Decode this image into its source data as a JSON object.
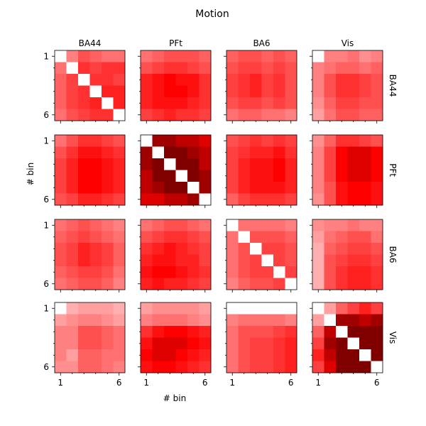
{
  "chart_data": {
    "type": "heatmap",
    "title": "Motion",
    "xlabel": "# bin",
    "ylabel": "# bin",
    "regions": [
      "BA44",
      "PFt",
      "BA6",
      "Vis"
    ],
    "bins": [
      1,
      2,
      3,
      4,
      5,
      6
    ],
    "tick_labels": [
      "1",
      "6"
    ],
    "colormap": "white-to-red-to-darkred",
    "color_range": [
      0,
      1
    ],
    "diagonal_of_diagonal_blocks": "blank",
    "matrices": [
      [
        [
          [
            null,
            0.4,
            0.55,
            0.5,
            0.45,
            0.45
          ],
          [
            0.45,
            null,
            0.65,
            0.6,
            0.65,
            0.65
          ],
          [
            0.5,
            0.6,
            null,
            0.65,
            0.65,
            0.6
          ],
          [
            0.5,
            0.6,
            0.65,
            null,
            0.7,
            0.7
          ],
          [
            0.5,
            0.6,
            0.65,
            0.7,
            null,
            0.7
          ],
          [
            0.45,
            0.55,
            0.6,
            0.65,
            0.65,
            null
          ]
        ],
        [
          [
            0.45,
            0.5,
            0.55,
            0.55,
            0.55,
            0.5
          ],
          [
            0.55,
            0.6,
            0.65,
            0.65,
            0.6,
            0.55
          ],
          [
            0.7,
            0.75,
            0.8,
            0.75,
            0.75,
            0.65
          ],
          [
            0.7,
            0.75,
            0.8,
            0.8,
            0.75,
            0.65
          ],
          [
            0.7,
            0.75,
            0.75,
            0.75,
            0.7,
            0.65
          ],
          [
            0.6,
            0.65,
            0.7,
            0.65,
            0.65,
            0.6
          ]
        ],
        [
          [
            0.5,
            0.55,
            0.55,
            0.5,
            0.55,
            0.5
          ],
          [
            0.55,
            0.6,
            0.6,
            0.55,
            0.6,
            0.55
          ],
          [
            0.6,
            0.65,
            0.7,
            0.6,
            0.65,
            0.55
          ],
          [
            0.6,
            0.65,
            0.7,
            0.6,
            0.65,
            0.55
          ],
          [
            0.55,
            0.6,
            0.6,
            0.55,
            0.6,
            0.55
          ],
          [
            0.45,
            0.5,
            0.5,
            0.45,
            0.45,
            0.4
          ]
        ],
        [
          [
            null,
            0.4,
            0.4,
            0.45,
            0.35,
            0.4
          ],
          [
            0.4,
            0.45,
            0.5,
            0.5,
            0.45,
            0.5
          ],
          [
            0.4,
            0.55,
            0.65,
            0.65,
            0.6,
            0.55
          ],
          [
            0.4,
            0.55,
            0.65,
            0.65,
            0.6,
            0.55
          ],
          [
            0.35,
            0.5,
            0.6,
            0.6,
            0.55,
            0.55
          ],
          [
            0.3,
            0.45,
            0.55,
            0.55,
            0.5,
            0.5
          ]
        ]
      ],
      [
        [
          [
            0.45,
            0.55,
            0.65,
            0.65,
            0.6,
            0.55
          ],
          [
            0.55,
            0.65,
            0.75,
            0.75,
            0.7,
            0.65
          ],
          [
            0.6,
            0.7,
            0.8,
            0.8,
            0.75,
            0.7
          ],
          [
            0.6,
            0.7,
            0.8,
            0.8,
            0.75,
            0.7
          ],
          [
            0.6,
            0.7,
            0.8,
            0.8,
            0.75,
            0.7
          ],
          [
            0.55,
            0.6,
            0.7,
            0.7,
            0.65,
            0.6
          ]
        ],
        [
          [
            null,
            0.95,
            0.95,
            0.9,
            0.9,
            0.85
          ],
          [
            0.95,
            null,
            1.0,
            1.0,
            0.95,
            0.9
          ],
          [
            0.95,
            1.0,
            null,
            1.0,
            1.0,
            0.9
          ],
          [
            0.9,
            1.0,
            1.0,
            null,
            1.0,
            0.95
          ],
          [
            0.9,
            0.95,
            1.0,
            1.0,
            null,
            0.95
          ],
          [
            0.85,
            0.85,
            0.9,
            0.9,
            0.95,
            null
          ]
        ],
        [
          [
            0.55,
            0.6,
            0.65,
            0.6,
            0.65,
            0.6
          ],
          [
            0.6,
            0.65,
            0.7,
            0.7,
            0.75,
            0.65
          ],
          [
            0.6,
            0.7,
            0.75,
            0.75,
            0.8,
            0.7
          ],
          [
            0.6,
            0.7,
            0.75,
            0.75,
            0.8,
            0.7
          ],
          [
            0.6,
            0.7,
            0.75,
            0.75,
            0.75,
            0.7
          ],
          [
            0.5,
            0.6,
            0.65,
            0.65,
            0.65,
            0.6
          ]
        ],
        [
          [
            0.35,
            0.5,
            0.65,
            0.65,
            0.6,
            0.55
          ],
          [
            0.4,
            0.6,
            0.8,
            0.85,
            0.85,
            0.8
          ],
          [
            0.4,
            0.6,
            0.8,
            0.85,
            0.85,
            0.8
          ],
          [
            0.4,
            0.6,
            0.8,
            0.85,
            0.85,
            0.8
          ],
          [
            0.4,
            0.55,
            0.75,
            0.8,
            0.8,
            0.75
          ],
          [
            0.35,
            0.55,
            0.75,
            0.8,
            0.8,
            0.75
          ]
        ]
      ],
      [
        [
          [
            0.45,
            0.5,
            0.55,
            0.5,
            0.45,
            0.4
          ],
          [
            0.5,
            0.55,
            0.6,
            0.55,
            0.5,
            0.45
          ],
          [
            0.55,
            0.6,
            0.7,
            0.65,
            0.6,
            0.5
          ],
          [
            0.55,
            0.6,
            0.7,
            0.65,
            0.6,
            0.5
          ],
          [
            0.5,
            0.55,
            0.6,
            0.6,
            0.55,
            0.45
          ],
          [
            0.45,
            0.5,
            0.55,
            0.55,
            0.5,
            0.4
          ]
        ],
        [
          [
            0.45,
            0.5,
            0.55,
            0.55,
            0.5,
            0.45
          ],
          [
            0.55,
            0.6,
            0.65,
            0.65,
            0.6,
            0.55
          ],
          [
            0.65,
            0.7,
            0.75,
            0.7,
            0.65,
            0.6
          ],
          [
            0.7,
            0.75,
            0.75,
            0.7,
            0.7,
            0.6
          ],
          [
            0.75,
            0.8,
            0.8,
            0.75,
            0.7,
            0.65
          ],
          [
            0.7,
            0.75,
            0.7,
            0.7,
            0.65,
            0.6
          ]
        ],
        [
          [
            null,
            0.45,
            0.45,
            0.45,
            0.45,
            0.4
          ],
          [
            0.45,
            null,
            0.55,
            0.55,
            0.55,
            0.5
          ],
          [
            0.45,
            0.55,
            null,
            0.6,
            0.6,
            0.55
          ],
          [
            0.45,
            0.55,
            0.6,
            null,
            0.6,
            0.55
          ],
          [
            0.45,
            0.55,
            0.6,
            0.6,
            null,
            0.6
          ],
          [
            0.4,
            0.5,
            0.55,
            0.55,
            0.6,
            null
          ]
        ],
        [
          [
            0.35,
            0.4,
            0.4,
            0.45,
            0.4,
            0.4
          ],
          [
            0.3,
            0.45,
            0.5,
            0.55,
            0.55,
            0.45
          ],
          [
            0.25,
            0.5,
            0.55,
            0.6,
            0.6,
            0.55
          ],
          [
            0.25,
            0.55,
            0.6,
            0.65,
            0.65,
            0.6
          ],
          [
            0.25,
            0.55,
            0.65,
            0.7,
            0.7,
            0.65
          ],
          [
            0.25,
            0.55,
            0.65,
            0.7,
            0.7,
            0.65
          ]
        ]
      ],
      [
        [
          [
            null,
            0.25,
            0.3,
            0.3,
            0.3,
            0.25
          ],
          [
            0.3,
            0.35,
            0.4,
            0.4,
            0.35,
            0.3
          ],
          [
            0.4,
            0.4,
            0.55,
            0.55,
            0.5,
            0.45
          ],
          [
            0.4,
            0.4,
            0.55,
            0.55,
            0.5,
            0.45
          ],
          [
            0.4,
            0.3,
            0.5,
            0.5,
            0.45,
            0.45
          ],
          [
            0.35,
            0.35,
            0.5,
            0.5,
            0.45,
            0.4
          ]
        ],
        [
          [
            0.3,
            0.35,
            0.35,
            0.35,
            0.35,
            0.3
          ],
          [
            0.4,
            0.45,
            0.45,
            0.45,
            0.4,
            0.35
          ],
          [
            0.65,
            0.75,
            0.8,
            0.8,
            0.75,
            0.7
          ],
          [
            0.75,
            0.85,
            0.85,
            0.85,
            0.8,
            0.75
          ],
          [
            0.8,
            0.85,
            0.85,
            0.8,
            0.75,
            0.7
          ],
          [
            0.75,
            0.8,
            0.8,
            0.75,
            0.7,
            0.65
          ]
        ],
        [
          [
            null,
            0.0,
            0.0,
            0.0,
            0.0,
            0.0
          ],
          [
            0.4,
            0.45,
            0.45,
            0.45,
            0.45,
            0.4
          ],
          [
            0.45,
            0.55,
            0.55,
            0.55,
            0.6,
            0.65
          ],
          [
            0.45,
            0.55,
            0.6,
            0.6,
            0.65,
            0.7
          ],
          [
            0.45,
            0.55,
            0.6,
            0.6,
            0.65,
            0.7
          ],
          [
            0.45,
            0.55,
            0.6,
            0.6,
            0.65,
            0.7
          ]
        ],
        [
          [
            null,
            0.3,
            0.5,
            0.6,
            0.7,
            0.6
          ],
          [
            0.3,
            null,
            0.95,
            0.95,
            0.9,
            0.95
          ],
          [
            0.5,
            0.9,
            null,
            1.0,
            1.0,
            1.0
          ],
          [
            0.6,
            0.95,
            1.0,
            null,
            1.0,
            1.0
          ],
          [
            0.7,
            0.9,
            1.0,
            1.0,
            null,
            1.0
          ],
          [
            0.6,
            0.85,
            1.0,
            1.0,
            1.0,
            null
          ]
        ]
      ]
    ]
  }
}
